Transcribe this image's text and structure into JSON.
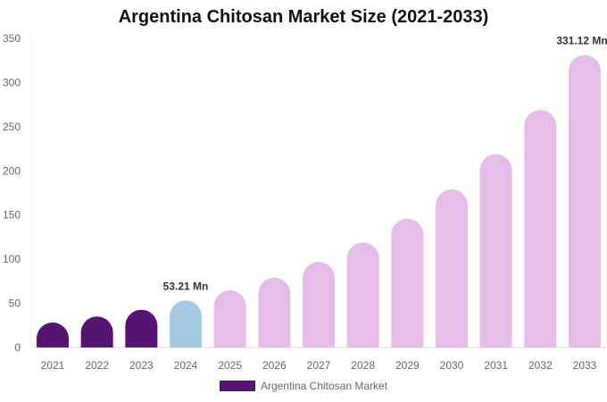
{
  "chart_data": {
    "type": "bar",
    "title": "Argentina Chitosan Market Size (2021-2033)",
    "categories": [
      "2021",
      "2022",
      "2023",
      "2024",
      "2025",
      "2026",
      "2027",
      "2028",
      "2029",
      "2030",
      "2031",
      "2032",
      "2033"
    ],
    "series": [
      {
        "name": "Argentina Chitosan Market",
        "values": [
          28.3,
          35.2,
          42.8,
          53.21,
          64.7,
          79,
          97,
          119,
          146,
          179,
          219,
          269,
          331.12
        ]
      }
    ],
    "data_labels": {
      "3": "53.21 Mn",
      "12": "331.12 Mn"
    },
    "yticks": [
      0,
      50,
      100,
      150,
      200,
      250,
      300,
      350
    ],
    "ylim": [
      0,
      350
    ],
    "grid": false,
    "legend_position": "bottom",
    "colors": {
      "historical": "#551470",
      "base_year": "#a3cbe0",
      "forecast": "#e6bde9"
    }
  }
}
